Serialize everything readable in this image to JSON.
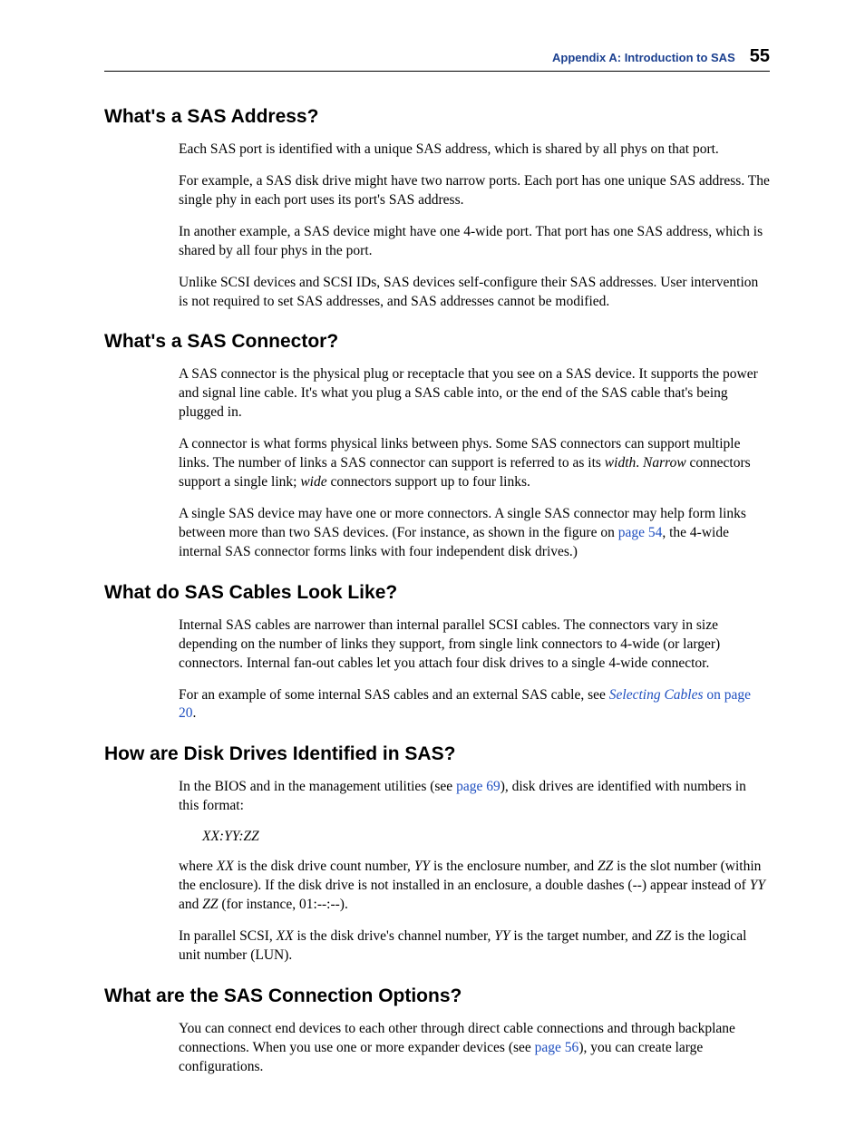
{
  "header": {
    "appendix": "Appendix A: Introduction to SAS",
    "page_number": "55"
  },
  "sections": {
    "s1": {
      "title": "What's a SAS Address?",
      "p1": "Each SAS port is identified with a unique SAS address, which is shared by all phys on that port.",
      "p2": "For example, a SAS disk drive might have two narrow ports. Each port has one unique SAS address. The single phy in each port uses its port's SAS address.",
      "p3": "In another example, a SAS device might have one 4-wide port. That port has one SAS address, which is shared by all four phys in the port.",
      "p4": "Unlike SCSI devices and SCSI IDs, SAS devices self-configure their SAS addresses. User intervention is not required to set SAS addresses, and SAS addresses cannot be modified."
    },
    "s2": {
      "title": "What's a SAS Connector?",
      "p1": "A SAS connector is the physical plug or receptacle that you see on a SAS device. It supports the power and signal line cable. It's what you plug a SAS cable into, or the end of the SAS cable that's being plugged in.",
      "p2a": "A connector is what forms physical links between phys. Some SAS connectors can support multiple links. The number of links a SAS connector can support is referred to as its ",
      "p2b": "width",
      "p2c": ". ",
      "p2d": "Narrow",
      "p2e": " connectors support a single link; ",
      "p2f": "wide",
      "p2g": " connectors support up to four links.",
      "p3a": "A single SAS device may have one or more connectors. A single SAS connector may help form links between more than two SAS devices. (For instance, as shown in the figure on ",
      "p3b": "page 54",
      "p3c": ", the 4-wide internal SAS connector forms links with four independent disk drives.)"
    },
    "s3": {
      "title": "What do SAS Cables Look Like?",
      "p1": "Internal SAS cables are narrower than internal parallel SCSI cables. The connectors vary in size depending on the number of links they support, from single link connectors to 4-wide (or larger) connectors. Internal fan-out cables let you attach four disk drives to a single 4-wide connector.",
      "p2a": "For an example of some internal SAS cables and an external SAS cable, see ",
      "p2b": "Selecting Cables",
      "p2c": " on page 20",
      "p2d": "."
    },
    "s4": {
      "title": "How are Disk Drives Identified in SAS?",
      "p1a": "In the BIOS and in the management utilities (see ",
      "p1b": "page 69",
      "p1c": "), disk drives are identified with numbers in this format:",
      "format": "XX:YY:ZZ",
      "p2a": "where ",
      "p2b": "XX",
      "p2c": " is the disk drive count number, ",
      "p2d": "YY",
      "p2e": " is the enclosure number, and ",
      "p2f": "ZZ",
      "p2g": " is the slot number (within the enclosure). If the disk drive is not installed in an enclosure, a double dashes (--) appear instead of ",
      "p2h": "YY",
      "p2i": " and ",
      "p2j": "ZZ",
      "p2k": " (for instance, 01:--:--).",
      "p3a": "In parallel SCSI, ",
      "p3b": "XX",
      "p3c": " is the disk drive's channel number, ",
      "p3d": "YY",
      "p3e": " is the target number, and ",
      "p3f": "ZZ",
      "p3g": " is the logical unit number (LUN)."
    },
    "s5": {
      "title": "What are the SAS Connection Options?",
      "p1a": "You can connect end devices to each other through direct cable connections and through backplane connections. When you use one or more expander devices (see ",
      "p1b": "page 56",
      "p1c": "), you can create large configurations."
    }
  }
}
